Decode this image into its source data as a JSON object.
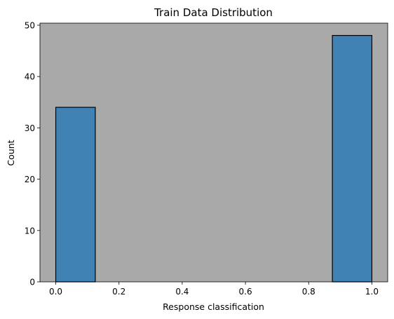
{
  "chart_data": {
    "type": "bar",
    "title": "Train Data Distribution",
    "xlabel": "Response classification",
    "ylabel": "Count",
    "bins": [
      {
        "x_start": 0.0,
        "x_end": 0.125,
        "count": 34
      },
      {
        "x_start": 0.875,
        "x_end": 1.0,
        "count": 48
      }
    ],
    "xlim": [
      -0.05,
      1.05
    ],
    "ylim": [
      0,
      50.4
    ],
    "xticks": [
      0.0,
      0.2,
      0.4,
      0.6,
      0.8,
      1.0
    ],
    "xtick_labels": [
      "0.0",
      "0.2",
      "0.4",
      "0.6",
      "0.8",
      "1.0"
    ],
    "yticks": [
      0,
      10,
      20,
      30,
      40,
      50
    ],
    "ytick_labels": [
      "0",
      "10",
      "20",
      "30",
      "40",
      "50"
    ],
    "grid": false,
    "colors": {
      "bar_fill": "#4082b4",
      "bar_edge": "#000000",
      "plot_background": "#a9a9a9"
    }
  }
}
